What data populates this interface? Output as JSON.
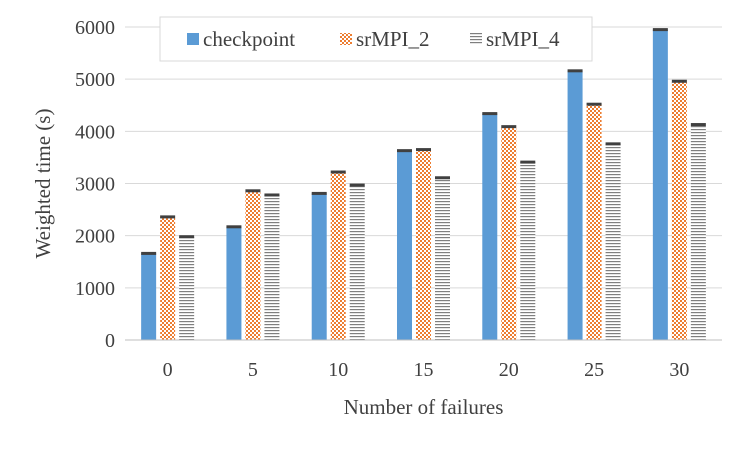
{
  "chart_data": {
    "type": "bar",
    "categories": [
      "0",
      "5",
      "10",
      "15",
      "20",
      "25",
      "30"
    ],
    "series": [
      {
        "name": "checkpoint",
        "values": [
          1660,
          2170,
          2810,
          3630,
          4340,
          5160,
          5950
        ],
        "color": "#5b9bd5",
        "pattern": "solid"
      },
      {
        "name": "srMPI_2",
        "values": [
          2360,
          2860,
          3220,
          3650,
          4090,
          4520,
          4960
        ],
        "color": "#ed7d31",
        "pattern": "checker"
      },
      {
        "name": "srMPI_4",
        "values": [
          1980,
          2780,
          2970,
          3110,
          3410,
          3760,
          4130
        ],
        "color": "#7f7f7f",
        "pattern": "horizontal-lines"
      }
    ],
    "xlabel": "Number of failures",
    "ylabel": "Weighted time (s)",
    "ylim": [
      0,
      6000
    ],
    "yticks": [
      0,
      1000,
      2000,
      3000,
      4000,
      5000,
      6000
    ],
    "grid": true,
    "legend": "top"
  }
}
